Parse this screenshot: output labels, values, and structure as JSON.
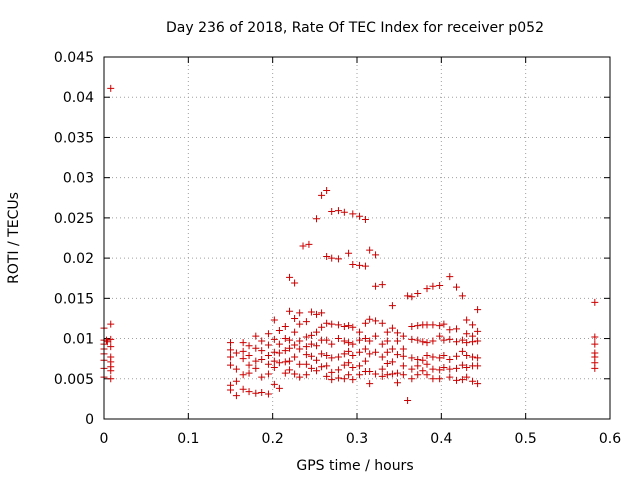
{
  "chart_data": {
    "type": "scatter",
    "title": "Day 236 of 2018, Rate Of TEC Index for receiver p052",
    "xlabel": "GPS time / hours",
    "ylabel": "ROTI / TECUs",
    "xlim": [
      0,
      0.6
    ],
    "ylim": [
      0,
      0.045
    ],
    "xticks": [
      0,
      0.1,
      0.2,
      0.3,
      0.4,
      0.5,
      0.6
    ],
    "xtick_labels": [
      "0",
      "0.1",
      "0.2",
      "0.3",
      "0.4",
      "0.5",
      "0.6"
    ],
    "yticks": [
      0,
      0.005,
      0.01,
      0.015,
      0.02,
      0.025,
      0.03,
      0.035,
      0.04,
      0.045
    ],
    "ytick_labels": [
      "0",
      "0.005",
      "0.01",
      "0.015",
      "0.02",
      "0.025",
      "0.03",
      "0.035",
      "0.04",
      "0.045"
    ],
    "grid": true,
    "marker": "+",
    "color": "#cc0000",
    "series": [
      {
        "name": "ROTI",
        "points": [
          [
            0.008,
            0.0411
          ],
          [
            0.0,
            0.0113
          ],
          [
            0.0,
            0.0098
          ],
          [
            0.0,
            0.0093
          ],
          [
            0.0,
            0.0087
          ],
          [
            0.0,
            0.0081
          ],
          [
            0.0,
            0.0073
          ],
          [
            0.0,
            0.0063
          ],
          [
            0.0,
            0.0052
          ],
          [
            0.003,
            0.0098
          ],
          [
            0.004,
            0.0096
          ],
          [
            0.008,
            0.0118
          ],
          [
            0.008,
            0.0099
          ],
          [
            0.008,
            0.009
          ],
          [
            0.008,
            0.0077
          ],
          [
            0.008,
            0.0071
          ],
          [
            0.008,
            0.0065
          ],
          [
            0.008,
            0.006
          ],
          [
            0.008,
            0.005
          ],
          [
            0.15,
            0.0095
          ],
          [
            0.15,
            0.0086
          ],
          [
            0.15,
            0.0077
          ],
          [
            0.15,
            0.0067
          ],
          [
            0.15,
            0.0042
          ],
          [
            0.15,
            0.0036
          ],
          [
            0.157,
            0.0082
          ],
          [
            0.157,
            0.0062
          ],
          [
            0.157,
            0.0047
          ],
          [
            0.157,
            0.0029
          ],
          [
            0.165,
            0.0095
          ],
          [
            0.165,
            0.0084
          ],
          [
            0.165,
            0.0075
          ],
          [
            0.165,
            0.0055
          ],
          [
            0.165,
            0.0037
          ],
          [
            0.172,
            0.0091
          ],
          [
            0.172,
            0.0079
          ],
          [
            0.172,
            0.0067
          ],
          [
            0.172,
            0.0057
          ],
          [
            0.172,
            0.0034
          ],
          [
            0.18,
            0.0103
          ],
          [
            0.18,
            0.0088
          ],
          [
            0.18,
            0.0072
          ],
          [
            0.18,
            0.0063
          ],
          [
            0.18,
            0.0032
          ],
          [
            0.187,
            0.0097
          ],
          [
            0.187,
            0.0085
          ],
          [
            0.187,
            0.0074
          ],
          [
            0.187,
            0.0052
          ],
          [
            0.187,
            0.0033
          ],
          [
            0.195,
            0.0106
          ],
          [
            0.195,
            0.0092
          ],
          [
            0.195,
            0.0079
          ],
          [
            0.195,
            0.0068
          ],
          [
            0.195,
            0.0056
          ],
          [
            0.195,
            0.0031
          ],
          [
            0.202,
            0.0123
          ],
          [
            0.202,
            0.0099
          ],
          [
            0.202,
            0.0083
          ],
          [
            0.202,
            0.0072
          ],
          [
            0.202,
            0.0064
          ],
          [
            0.202,
            0.0043
          ],
          [
            0.208,
            0.011
          ],
          [
            0.208,
            0.0093
          ],
          [
            0.208,
            0.0082
          ],
          [
            0.208,
            0.007
          ],
          [
            0.208,
            0.0038
          ],
          [
            0.215,
            0.0115
          ],
          [
            0.215,
            0.01
          ],
          [
            0.215,
            0.0085
          ],
          [
            0.215,
            0.0071
          ],
          [
            0.215,
            0.0057
          ],
          [
            0.22,
            0.0176
          ],
          [
            0.22,
            0.0134
          ],
          [
            0.22,
            0.0098
          ],
          [
            0.22,
            0.0088
          ],
          [
            0.22,
            0.0072
          ],
          [
            0.22,
            0.0061
          ],
          [
            0.226,
            0.0169
          ],
          [
            0.226,
            0.0125
          ],
          [
            0.226,
            0.0108
          ],
          [
            0.226,
            0.0092
          ],
          [
            0.226,
            0.0077
          ],
          [
            0.226,
            0.0056
          ],
          [
            0.232,
            0.0132
          ],
          [
            0.232,
            0.0118
          ],
          [
            0.232,
            0.0097
          ],
          [
            0.232,
            0.0087
          ],
          [
            0.232,
            0.0068
          ],
          [
            0.232,
            0.0052
          ],
          [
            0.236,
            0.0215
          ],
          [
            0.24,
            0.0121
          ],
          [
            0.24,
            0.0102
          ],
          [
            0.24,
            0.009
          ],
          [
            0.24,
            0.008
          ],
          [
            0.24,
            0.0068
          ],
          [
            0.24,
            0.0055
          ],
          [
            0.243,
            0.0217
          ],
          [
            0.246,
            0.0133
          ],
          [
            0.246,
            0.0104
          ],
          [
            0.246,
            0.0093
          ],
          [
            0.246,
            0.0078
          ],
          [
            0.246,
            0.0063
          ],
          [
            0.252,
            0.0249
          ],
          [
            0.252,
            0.013
          ],
          [
            0.252,
            0.0108
          ],
          [
            0.252,
            0.0091
          ],
          [
            0.252,
            0.0073
          ],
          [
            0.252,
            0.006
          ],
          [
            0.258,
            0.0278
          ],
          [
            0.258,
            0.0132
          ],
          [
            0.258,
            0.0114
          ],
          [
            0.258,
            0.0098
          ],
          [
            0.258,
            0.0081
          ],
          [
            0.258,
            0.0065
          ],
          [
            0.264,
            0.0284
          ],
          [
            0.264,
            0.0202
          ],
          [
            0.264,
            0.0119
          ],
          [
            0.264,
            0.0098
          ],
          [
            0.264,
            0.0079
          ],
          [
            0.264,
            0.0066
          ],
          [
            0.264,
            0.0053
          ],
          [
            0.27,
            0.0258
          ],
          [
            0.27,
            0.02
          ],
          [
            0.27,
            0.0118
          ],
          [
            0.27,
            0.0093
          ],
          [
            0.27,
            0.0076
          ],
          [
            0.27,
            0.0058
          ],
          [
            0.27,
            0.0049
          ],
          [
            0.278,
            0.0259
          ],
          [
            0.278,
            0.0199
          ],
          [
            0.278,
            0.0117
          ],
          [
            0.278,
            0.01
          ],
          [
            0.278,
            0.0077
          ],
          [
            0.278,
            0.0061
          ],
          [
            0.278,
            0.0051
          ],
          [
            0.285,
            0.0257
          ],
          [
            0.285,
            0.0115
          ],
          [
            0.285,
            0.0097
          ],
          [
            0.285,
            0.0081
          ],
          [
            0.285,
            0.0067
          ],
          [
            0.285,
            0.005
          ],
          [
            0.29,
            0.0206
          ],
          [
            0.29,
            0.0116
          ],
          [
            0.29,
            0.0095
          ],
          [
            0.29,
            0.0084
          ],
          [
            0.29,
            0.007
          ],
          [
            0.29,
            0.0055
          ],
          [
            0.295,
            0.0255
          ],
          [
            0.295,
            0.0192
          ],
          [
            0.295,
            0.0114
          ],
          [
            0.295,
            0.0093
          ],
          [
            0.295,
            0.0079
          ],
          [
            0.295,
            0.0064
          ],
          [
            0.295,
            0.0049
          ],
          [
            0.303,
            0.0252
          ],
          [
            0.303,
            0.0191
          ],
          [
            0.303,
            0.0108
          ],
          [
            0.303,
            0.0098
          ],
          [
            0.303,
            0.0083
          ],
          [
            0.303,
            0.0066
          ],
          [
            0.303,
            0.0055
          ],
          [
            0.31,
            0.0248
          ],
          [
            0.31,
            0.019
          ],
          [
            0.31,
            0.0119
          ],
          [
            0.31,
            0.01
          ],
          [
            0.31,
            0.0087
          ],
          [
            0.31,
            0.0072
          ],
          [
            0.31,
            0.0059
          ],
          [
            0.315,
            0.021
          ],
          [
            0.315,
            0.0124
          ],
          [
            0.315,
            0.0097
          ],
          [
            0.315,
            0.0081
          ],
          [
            0.315,
            0.0059
          ],
          [
            0.315,
            0.0044
          ],
          [
            0.322,
            0.0204
          ],
          [
            0.322,
            0.0165
          ],
          [
            0.322,
            0.0122
          ],
          [
            0.322,
            0.0103
          ],
          [
            0.322,
            0.0083
          ],
          [
            0.322,
            0.0056
          ],
          [
            0.33,
            0.0167
          ],
          [
            0.33,
            0.0119
          ],
          [
            0.33,
            0.0093
          ],
          [
            0.33,
            0.0077
          ],
          [
            0.33,
            0.0062
          ],
          [
            0.33,
            0.0053
          ],
          [
            0.336,
            0.0108
          ],
          [
            0.336,
            0.0097
          ],
          [
            0.336,
            0.0083
          ],
          [
            0.336,
            0.0069
          ],
          [
            0.336,
            0.0055
          ],
          [
            0.342,
            0.0141
          ],
          [
            0.342,
            0.0113
          ],
          [
            0.342,
            0.0087
          ],
          [
            0.342,
            0.0071
          ],
          [
            0.342,
            0.0056
          ],
          [
            0.348,
            0.0107
          ],
          [
            0.348,
            0.0097
          ],
          [
            0.348,
            0.008
          ],
          [
            0.348,
            0.0057
          ],
          [
            0.348,
            0.0045
          ],
          [
            0.355,
            0.0103
          ],
          [
            0.355,
            0.0087
          ],
          [
            0.355,
            0.0078
          ],
          [
            0.355,
            0.0066
          ],
          [
            0.355,
            0.0055
          ],
          [
            0.36,
            0.0153
          ],
          [
            0.36,
            0.0023
          ],
          [
            0.365,
            0.0152
          ],
          [
            0.365,
            0.0115
          ],
          [
            0.365,
            0.0099
          ],
          [
            0.365,
            0.0076
          ],
          [
            0.365,
            0.0062
          ],
          [
            0.365,
            0.005
          ],
          [
            0.372,
            0.0156
          ],
          [
            0.372,
            0.0116
          ],
          [
            0.372,
            0.0098
          ],
          [
            0.372,
            0.0074
          ],
          [
            0.372,
            0.0066
          ],
          [
            0.372,
            0.0055
          ],
          [
            0.378,
            0.0117
          ],
          [
            0.378,
            0.0096
          ],
          [
            0.378,
            0.0073
          ],
          [
            0.378,
            0.006
          ],
          [
            0.383,
            0.0162
          ],
          [
            0.383,
            0.0117
          ],
          [
            0.383,
            0.0095
          ],
          [
            0.383,
            0.0079
          ],
          [
            0.383,
            0.0068
          ],
          [
            0.383,
            0.0055
          ],
          [
            0.39,
            0.0165
          ],
          [
            0.39,
            0.0117
          ],
          [
            0.39,
            0.0097
          ],
          [
            0.39,
            0.0077
          ],
          [
            0.39,
            0.0062
          ],
          [
            0.39,
            0.005
          ],
          [
            0.398,
            0.0166
          ],
          [
            0.398,
            0.0116
          ],
          [
            0.398,
            0.0103
          ],
          [
            0.398,
            0.0076
          ],
          [
            0.398,
            0.0061
          ],
          [
            0.398,
            0.005
          ],
          [
            0.403,
            0.0118
          ],
          [
            0.403,
            0.0098
          ],
          [
            0.403,
            0.0079
          ],
          [
            0.403,
            0.0064
          ],
          [
            0.41,
            0.0177
          ],
          [
            0.41,
            0.0111
          ],
          [
            0.41,
            0.0099
          ],
          [
            0.41,
            0.0074
          ],
          [
            0.41,
            0.0062
          ],
          [
            0.41,
            0.0052
          ],
          [
            0.418,
            0.0164
          ],
          [
            0.418,
            0.0112
          ],
          [
            0.418,
            0.0096
          ],
          [
            0.418,
            0.0078
          ],
          [
            0.418,
            0.0063
          ],
          [
            0.418,
            0.0048
          ],
          [
            0.425,
            0.0153
          ],
          [
            0.425,
            0.0098
          ],
          [
            0.425,
            0.0084
          ],
          [
            0.425,
            0.0067
          ],
          [
            0.425,
            0.0049
          ],
          [
            0.43,
            0.0123
          ],
          [
            0.43,
            0.0106
          ],
          [
            0.43,
            0.0095
          ],
          [
            0.43,
            0.0079
          ],
          [
            0.43,
            0.0064
          ],
          [
            0.43,
            0.0052
          ],
          [
            0.437,
            0.0117
          ],
          [
            0.437,
            0.0103
          ],
          [
            0.437,
            0.0096
          ],
          [
            0.437,
            0.0077
          ],
          [
            0.437,
            0.0066
          ],
          [
            0.437,
            0.0047
          ],
          [
            0.443,
            0.0136
          ],
          [
            0.443,
            0.0109
          ],
          [
            0.443,
            0.0097
          ],
          [
            0.443,
            0.0076
          ],
          [
            0.443,
            0.0066
          ],
          [
            0.443,
            0.0044
          ],
          [
            0.582,
            0.0145
          ],
          [
            0.582,
            0.0102
          ],
          [
            0.582,
            0.0093
          ],
          [
            0.582,
            0.0082
          ],
          [
            0.582,
            0.0077
          ],
          [
            0.582,
            0.007
          ],
          [
            0.582,
            0.0063
          ]
        ]
      }
    ]
  }
}
